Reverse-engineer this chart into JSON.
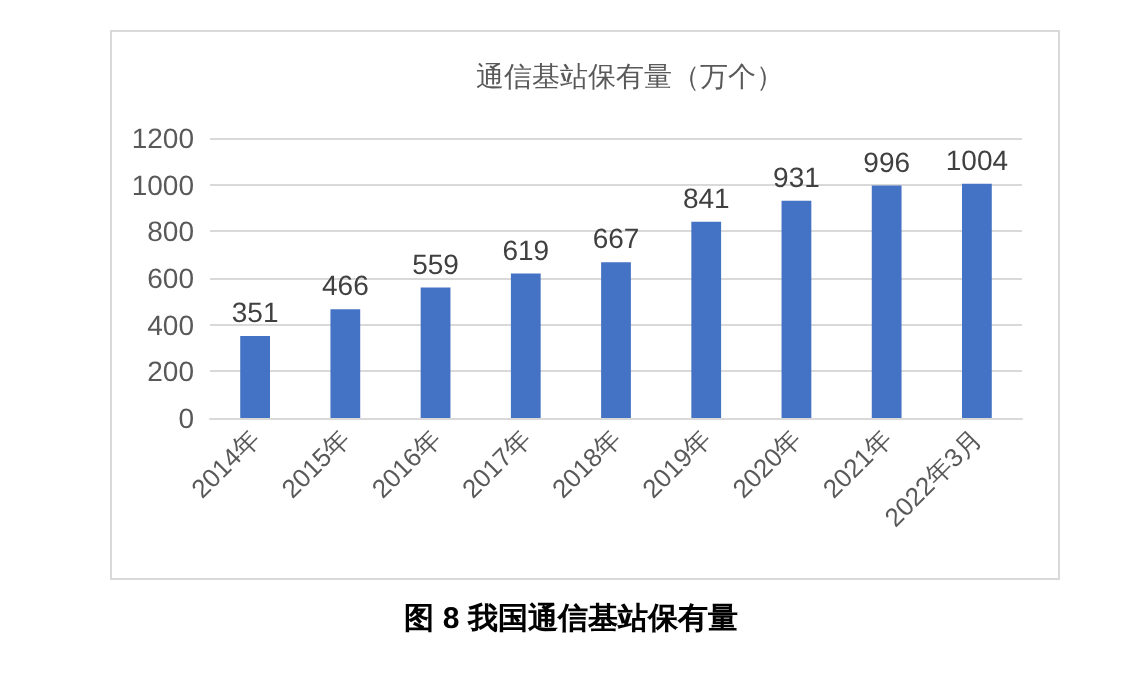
{
  "chart_data": {
    "type": "bar",
    "title": "通信基站保有量（万个）",
    "categories": [
      "2014年",
      "2015年",
      "2016年",
      "2017年",
      "2018年",
      "2019年",
      "2020年",
      "2021年",
      "2022年3月"
    ],
    "values": [
      351,
      466,
      559,
      619,
      667,
      841,
      931,
      996,
      1004
    ],
    "color": "#4472c4",
    "ylim": [
      0,
      1200
    ],
    "yticks": [
      0,
      200,
      400,
      600,
      800,
      1000,
      1200
    ],
    "grid": "y",
    "data_labels": true,
    "annotations": [
      "图 8 我国通信基站保有量"
    ]
  }
}
